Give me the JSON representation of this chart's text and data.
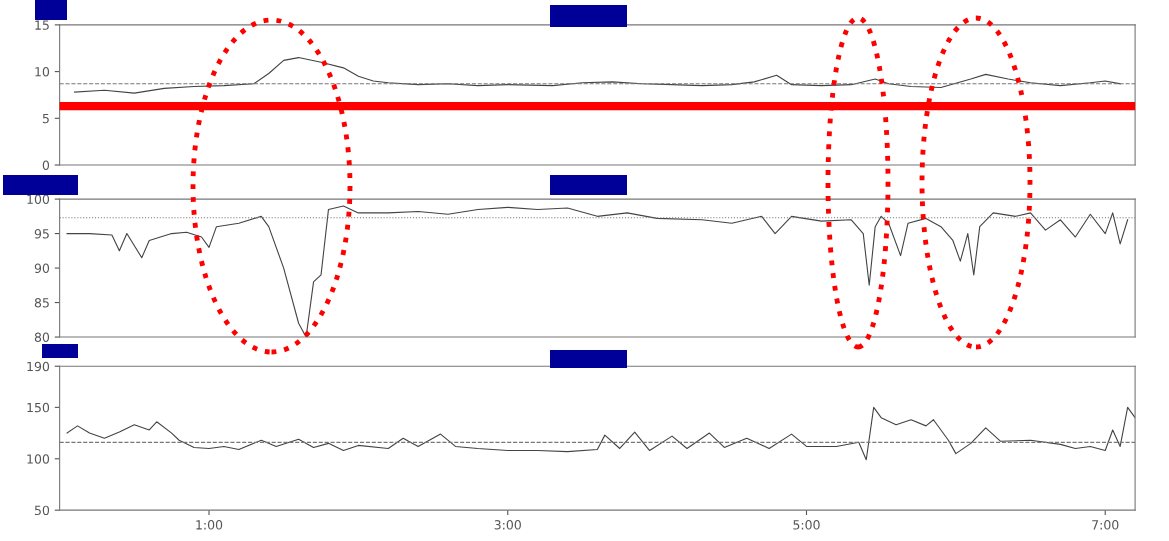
{
  "chart_data": [
    {
      "type": "line",
      "xlim": [
        0,
        7.2
      ],
      "ylim": [
        0,
        15
      ],
      "yticks": [
        0,
        5,
        10,
        15
      ],
      "tick_labels": "y",
      "grid": false,
      "legend": false,
      "series": [
        {
          "color": "#444444",
          "x": [
            0.1,
            0.3,
            0.5,
            0.7,
            0.9,
            1.1,
            1.3,
            1.4,
            1.5,
            1.6,
            1.75,
            1.9,
            2.0,
            2.1,
            2.2,
            2.4,
            2.6,
            2.8,
            3.0,
            3.3,
            3.5,
            3.7,
            3.9,
            4.1,
            4.3,
            4.5,
            4.65,
            4.8,
            4.9,
            5.1,
            5.3,
            5.46,
            5.55,
            5.7,
            5.9,
            6.1,
            6.2,
            6.35,
            6.5,
            6.7,
            6.9,
            7.0,
            7.1
          ],
          "values": [
            7.8,
            8.0,
            7.7,
            8.2,
            8.4,
            8.5,
            8.7,
            9.8,
            11.2,
            11.5,
            11.0,
            10.4,
            9.5,
            9.0,
            8.8,
            8.6,
            8.7,
            8.5,
            8.6,
            8.5,
            8.8,
            8.9,
            8.7,
            8.6,
            8.5,
            8.6,
            8.9,
            9.6,
            8.6,
            8.5,
            8.6,
            9.2,
            8.7,
            8.4,
            8.3,
            9.2,
            9.7,
            9.2,
            8.8,
            8.5,
            8.8,
            9.0,
            8.7
          ]
        }
      ],
      "ref_lines": [
        {
          "axis": "y",
          "value": 8.7,
          "color": "#777777",
          "line_style": "dashed"
        },
        {
          "axis": "y",
          "value": 6.3,
          "color": "#ff0000",
          "line_style": "solid"
        }
      ]
    },
    {
      "type": "line",
      "xlim": [
        0,
        7.2
      ],
      "ylim": [
        80,
        100
      ],
      "yticks": [
        80,
        85,
        90,
        95,
        100
      ],
      "tick_labels": "y",
      "grid": false,
      "legend": false,
      "series": [
        {
          "color": "#444444",
          "x": [
            0.05,
            0.2,
            0.35,
            0.4,
            0.45,
            0.55,
            0.6,
            0.75,
            0.85,
            0.95,
            1.0,
            1.05,
            1.2,
            1.35,
            1.4,
            1.5,
            1.6,
            1.65,
            1.7,
            1.75,
            1.8,
            1.9,
            2.0,
            2.2,
            2.4,
            2.6,
            2.8,
            3.0,
            3.2,
            3.4,
            3.6,
            3.8,
            4.0,
            4.3,
            4.5,
            4.7,
            4.79,
            4.9,
            5.1,
            5.3,
            5.38,
            5.42,
            5.46,
            5.5,
            5.55,
            5.63,
            5.68,
            5.8,
            5.9,
            5.98,
            6.03,
            6.08,
            6.12,
            6.16,
            6.25,
            6.4,
            6.5,
            6.6,
            6.7,
            6.8,
            6.9,
            7.0,
            7.05,
            7.1,
            7.15
          ],
          "values": [
            95,
            95,
            94.8,
            92.5,
            95,
            91.5,
            94,
            95,
            95.2,
            94.5,
            93,
            96,
            96.5,
            97.5,
            96,
            90,
            82,
            80,
            88,
            89,
            98.5,
            99,
            98,
            98,
            98.2,
            97.8,
            98.5,
            98.8,
            98.5,
            98.7,
            97.5,
            98,
            97.2,
            97,
            96.5,
            97.5,
            95,
            97.5,
            96.8,
            97,
            95,
            87.5,
            96,
            97.5,
            96.5,
            91.8,
            96.5,
            97.2,
            96,
            94,
            91,
            95,
            89,
            96,
            98,
            97.5,
            98,
            95.5,
            97,
            94.5,
            97.8,
            95,
            98,
            93.5,
            97
          ]
        }
      ],
      "ref_lines": [
        {
          "axis": "y",
          "value": 97.3,
          "color": "#777777",
          "line_style": "dotted"
        }
      ]
    },
    {
      "type": "line",
      "xlim": [
        0,
        7.2
      ],
      "ylim": [
        50,
        190
      ],
      "yticks": [
        50,
        100,
        150,
        190
      ],
      "xticks": [
        {
          "value": 1,
          "label": "1:00"
        },
        {
          "value": 3,
          "label": "3:00"
        },
        {
          "value": 5,
          "label": "5:00"
        },
        {
          "value": 7,
          "label": "7:00"
        }
      ],
      "grid": false,
      "legend": false,
      "series": [
        {
          "color": "#444444",
          "x": [
            0.05,
            0.12,
            0.2,
            0.3,
            0.4,
            0.5,
            0.6,
            0.65,
            0.75,
            0.8,
            0.9,
            1.0,
            1.1,
            1.2,
            1.35,
            1.45,
            1.6,
            1.7,
            1.8,
            1.9,
            2.0,
            2.2,
            2.3,
            2.4,
            2.55,
            2.65,
            2.8,
            3.0,
            3.2,
            3.4,
            3.6,
            3.65,
            3.75,
            3.85,
            3.95,
            4.1,
            4.2,
            4.35,
            4.45,
            4.6,
            4.75,
            4.9,
            5.0,
            5.2,
            5.35,
            5.4,
            5.45,
            5.5,
            5.6,
            5.7,
            5.8,
            5.85,
            5.95,
            6.0,
            6.1,
            6.2,
            6.3,
            6.5,
            6.7,
            6.8,
            6.9,
            7.0,
            7.05,
            7.1,
            7.15,
            7.2
          ],
          "values": [
            125,
            132,
            125,
            120,
            126,
            133,
            128,
            136,
            125,
            118,
            111,
            110,
            112,
            109,
            118,
            112,
            119,
            111,
            115,
            108,
            113,
            110,
            120,
            112,
            124,
            112,
            110,
            108,
            108,
            107,
            109,
            123,
            110,
            126,
            108,
            122,
            110,
            125,
            111,
            120,
            110,
            124,
            112,
            112,
            116,
            99,
            150,
            140,
            133,
            138,
            132,
            138,
            118,
            105,
            115,
            130,
            117,
            118,
            114,
            110,
            112,
            108,
            128,
            112,
            150,
            140
          ]
        }
      ],
      "ref_lines": [
        {
          "axis": "y",
          "value": 116,
          "color": "#777777",
          "line_style": "dashed"
        }
      ]
    }
  ]
}
